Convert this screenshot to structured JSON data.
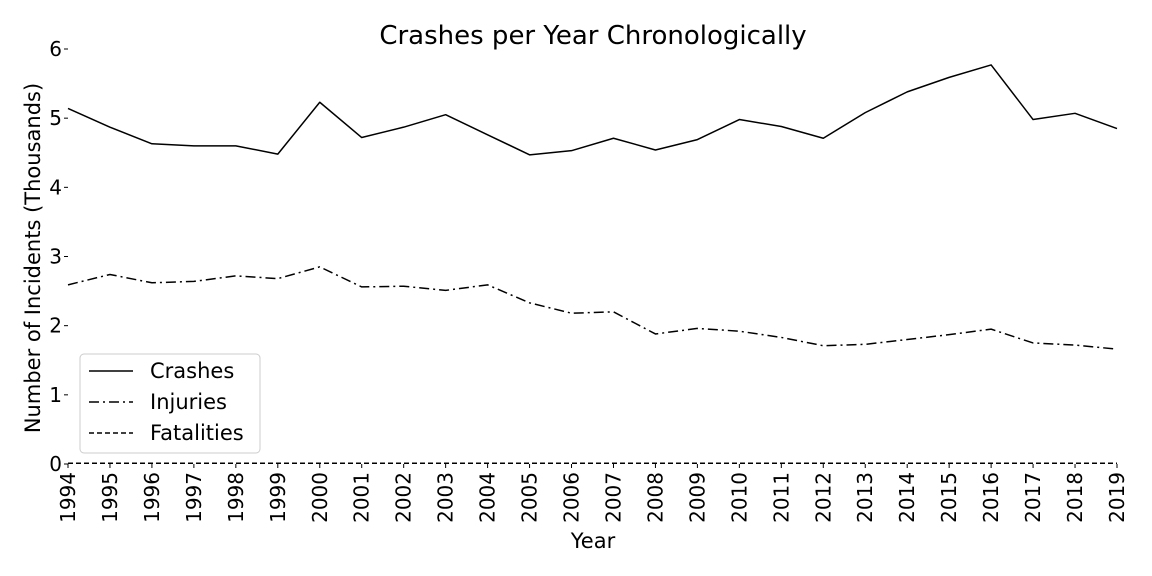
{
  "chart_data": {
    "type": "line",
    "title": "Crashes per Year Chronologically",
    "xlabel": "Year",
    "ylabel": "Number of Incidents (Thousands)",
    "x": [
      1994,
      1995,
      1996,
      1997,
      1998,
      1999,
      2000,
      2001,
      2002,
      2003,
      2004,
      2005,
      2006,
      2007,
      2008,
      2009,
      2010,
      2011,
      2012,
      2013,
      2014,
      2015,
      2016,
      2017,
      2018,
      2019
    ],
    "ylim": [
      0,
      6
    ],
    "yticks": [
      0,
      1,
      2,
      3,
      4,
      5,
      6
    ],
    "grid": false,
    "legend_position": "lower-left",
    "series": [
      {
        "name": "Crashes",
        "style": "solid",
        "color": "#000000",
        "values": [
          5.14,
          4.87,
          4.63,
          4.6,
          4.6,
          4.48,
          5.23,
          4.72,
          4.87,
          5.05,
          4.76,
          4.47,
          4.53,
          4.71,
          4.54,
          4.69,
          4.98,
          4.88,
          4.71,
          5.08,
          5.38,
          5.59,
          5.77,
          4.98,
          5.07,
          4.85
        ]
      },
      {
        "name": "Injuries",
        "style": "dashdot",
        "color": "#000000",
        "values": [
          2.59,
          2.74,
          2.62,
          2.64,
          2.72,
          2.68,
          2.85,
          2.56,
          2.57,
          2.51,
          2.59,
          2.33,
          2.18,
          2.2,
          1.88,
          1.96,
          1.92,
          1.83,
          1.71,
          1.73,
          1.8,
          1.87,
          1.95,
          1.75,
          1.72,
          1.66
        ]
      },
      {
        "name": "Fatalities",
        "style": "dashed",
        "color": "#000000",
        "values": [
          0.01,
          0.01,
          0.01,
          0.01,
          0.01,
          0.01,
          0.01,
          0.01,
          0.01,
          0.01,
          0.01,
          0.01,
          0.01,
          0.01,
          0.01,
          0.01,
          0.01,
          0.01,
          0.01,
          0.01,
          0.01,
          0.01,
          0.01,
          0.01,
          0.01,
          0.01
        ]
      }
    ]
  }
}
